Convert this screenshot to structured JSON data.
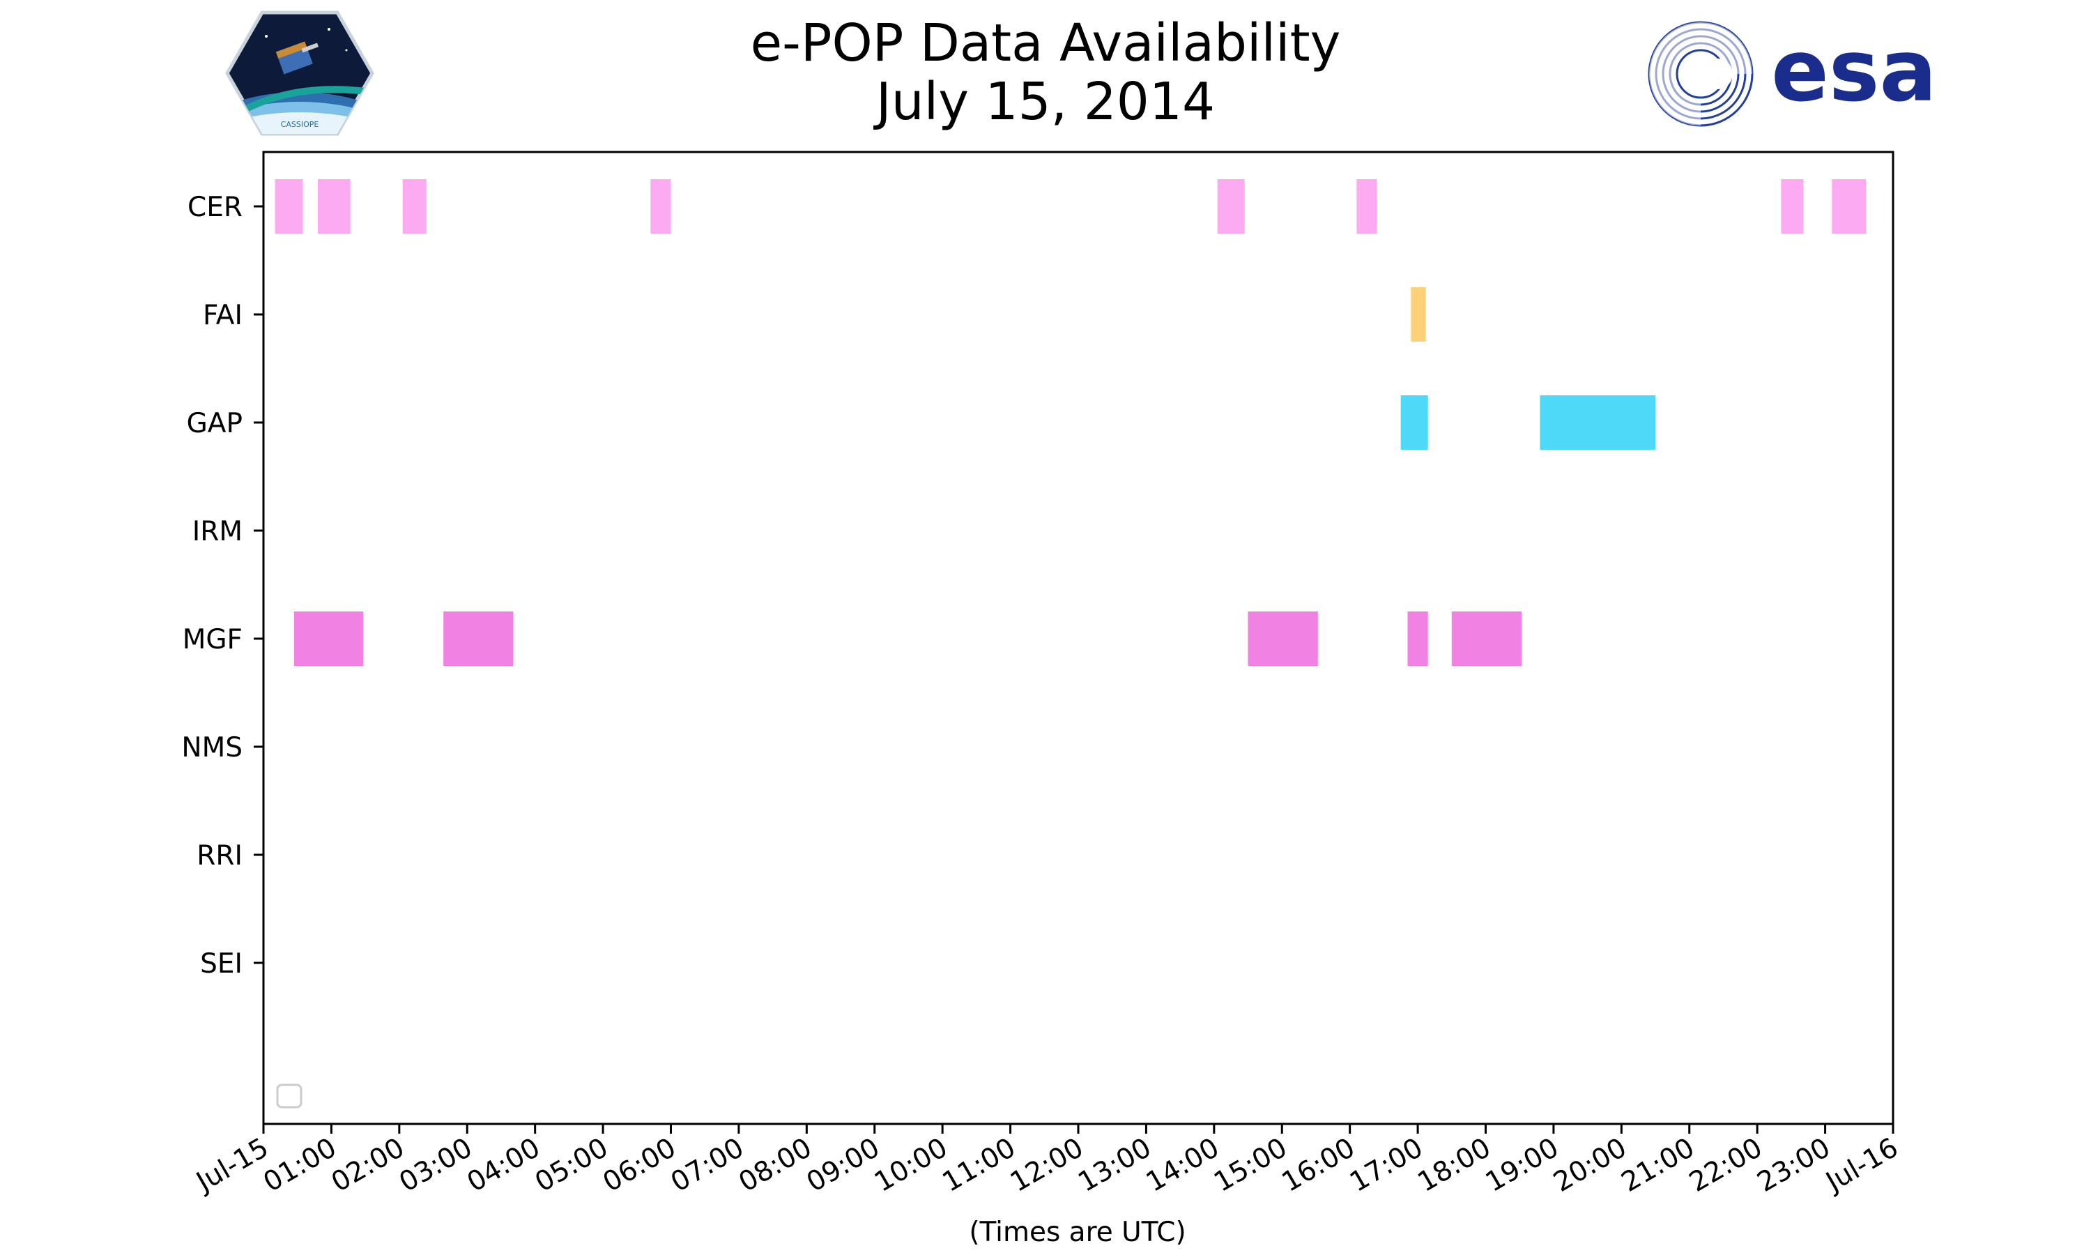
{
  "chart_data": {
    "type": "timeline",
    "title": [
      "e-POP Data Availability",
      "July 15, 2014"
    ],
    "xlabel": "(Times are UTC)",
    "x_ticks": [
      "Jul-15",
      "01:00",
      "02:00",
      "03:00",
      "04:00",
      "05:00",
      "06:00",
      "07:00",
      "08:00",
      "09:00",
      "10:00",
      "11:00",
      "12:00",
      "13:00",
      "14:00",
      "15:00",
      "16:00",
      "17:00",
      "18:00",
      "19:00",
      "20:00",
      "21:00",
      "22:00",
      "23:00",
      "Jul-16"
    ],
    "xlim_hours": [
      0,
      24
    ],
    "instruments": [
      "CER",
      "FAI",
      "GAP",
      "IRM",
      "MGF",
      "NMS",
      "RRI",
      "SEI"
    ],
    "colors": {
      "CER": "#fcaaf2",
      "FAI": "#fdd07a",
      "GAP": "#4fd9f8",
      "MGF": "#f181e3"
    },
    "intervals": {
      "CER": [
        [
          0.17,
          0.58
        ],
        [
          0.8,
          1.28
        ],
        [
          2.05,
          2.4
        ],
        [
          5.7,
          6.0
        ],
        [
          14.05,
          14.45
        ],
        [
          16.1,
          16.4
        ],
        [
          22.35,
          22.68
        ],
        [
          23.1,
          23.6
        ]
      ],
      "FAI": [
        [
          16.9,
          17.12
        ]
      ],
      "GAP": [
        [
          16.75,
          17.15
        ],
        [
          18.8,
          20.5
        ]
      ],
      "IRM": [],
      "MGF": [
        [
          0.45,
          1.47
        ],
        [
          2.65,
          3.68
        ],
        [
          14.5,
          15.53
        ],
        [
          16.85,
          17.15
        ],
        [
          17.5,
          18.53
        ]
      ],
      "NMS": [],
      "RRI": [],
      "SEI": []
    }
  },
  "logos": {
    "left_icon": "cassiope-mission-patch",
    "left_text": "CASSIOPE",
    "right_icon": "esa-logo",
    "right_text": "esa"
  }
}
